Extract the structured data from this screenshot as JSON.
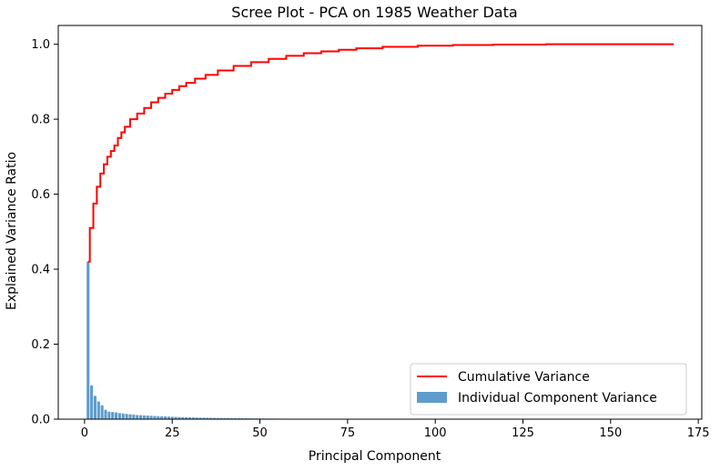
{
  "chart_data": {
    "type": "bar",
    "title": "Scree Plot - PCA on 1985 Weather Data",
    "xlabel": "Principal Component",
    "ylabel": "Explained Variance Ratio",
    "xlim": [
      -7.5,
      176
    ],
    "ylim": [
      0,
      1.05
    ],
    "xticks": [
      0,
      25,
      50,
      75,
      100,
      125,
      150,
      175
    ],
    "yticks": [
      0.0,
      0.2,
      0.4,
      0.6,
      0.8,
      1.0
    ],
    "ytick_labels": [
      "0.0",
      "0.2",
      "0.4",
      "0.6",
      "0.8",
      "1.0"
    ],
    "legend_position": "lower-right",
    "n_components": 168,
    "series": [
      {
        "name": "Individual Component Variance",
        "kind": "bar",
        "color": "#5f9ccc",
        "values": [
          0.42,
          0.09,
          0.062,
          0.047,
          0.037,
          0.025,
          0.02,
          0.019,
          0.018,
          0.016,
          0.015,
          0.014,
          0.013,
          0.012,
          0.011,
          0.0105,
          0.01,
          0.0095,
          0.009,
          0.0085,
          0.008,
          0.0076,
          0.0072,
          0.0068,
          0.0064,
          0.006,
          0.0057,
          0.0054,
          0.0051,
          0.0048,
          0.0045,
          0.0043,
          0.0041,
          0.0039,
          0.0037,
          0.0035,
          0.0033,
          0.0031,
          0.003,
          0.0028,
          0.0027,
          0.0026,
          0.0025,
          0.0024,
          0.0023,
          0.0022,
          0.0021,
          0.002,
          0.0019,
          0.0018,
          0.0017,
          0.0016,
          0.0015,
          0.0015,
          0.0014,
          0.0013,
          0.0013,
          0.0012,
          0.0012,
          0.0011,
          0.0011,
          0.001,
          0.001,
          0.0009,
          0.0009,
          0.0009,
          0.0008,
          0.0008,
          0.0008,
          0.0007,
          0.0007,
          0.0007,
          0.0006,
          0.0006,
          0.0006,
          0.0006,
          0.0005,
          0.0005,
          0.0005
        ]
      },
      {
        "name": "Cumulative Variance",
        "kind": "step",
        "color": "#ff0000",
        "points": [
          [
            1,
            0.42
          ],
          [
            2,
            0.51
          ],
          [
            3,
            0.575
          ],
          [
            4,
            0.62
          ],
          [
            5,
            0.655
          ],
          [
            6,
            0.68
          ],
          [
            7,
            0.7
          ],
          [
            8,
            0.715
          ],
          [
            9,
            0.73
          ],
          [
            10,
            0.75
          ],
          [
            11,
            0.765
          ],
          [
            12,
            0.78
          ],
          [
            14,
            0.8
          ],
          [
            16,
            0.815
          ],
          [
            18,
            0.83
          ],
          [
            20,
            0.845
          ],
          [
            22,
            0.857
          ],
          [
            24,
            0.868
          ],
          [
            26,
            0.878
          ],
          [
            28,
            0.888
          ],
          [
            30,
            0.897
          ],
          [
            33,
            0.908
          ],
          [
            36,
            0.918
          ],
          [
            40,
            0.93
          ],
          [
            45,
            0.942
          ],
          [
            50,
            0.952
          ],
          [
            55,
            0.961
          ],
          [
            60,
            0.969
          ],
          [
            65,
            0.976
          ],
          [
            70,
            0.981
          ],
          [
            75,
            0.985
          ],
          [
            80,
            0.989
          ],
          [
            90,
            0.993
          ],
          [
            100,
            0.996
          ],
          [
            110,
            0.998
          ],
          [
            123,
            0.999
          ],
          [
            140,
            1.0
          ],
          [
            168,
            1.0
          ]
        ]
      }
    ]
  }
}
